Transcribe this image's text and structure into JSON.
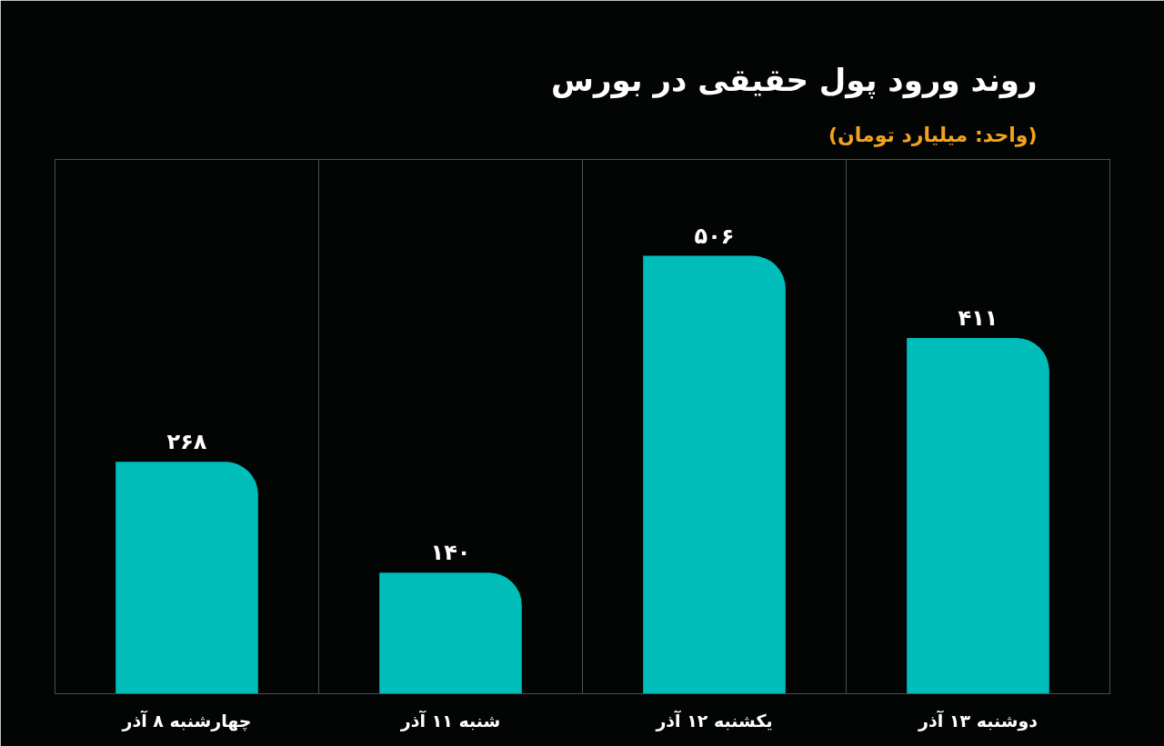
{
  "chart_data": {
    "type": "bar",
    "title": "روند ورود پول حقیقی در بورس",
    "subtitle": "(واحد: میلیارد تومان)",
    "categories": [
      "چهارشنبه ۸ آذر",
      "شنبه ۱۱ آذر",
      "یکشنبه ۱۲ آذر",
      "دوشنبه ۱۳ آذر"
    ],
    "values": [
      268,
      140,
      506,
      411
    ],
    "value_labels": [
      "۲۶۸",
      "۱۴۰",
      "۵۰۶",
      "۴۱۱"
    ],
    "color": "#00bdba",
    "grid": "x"
  }
}
